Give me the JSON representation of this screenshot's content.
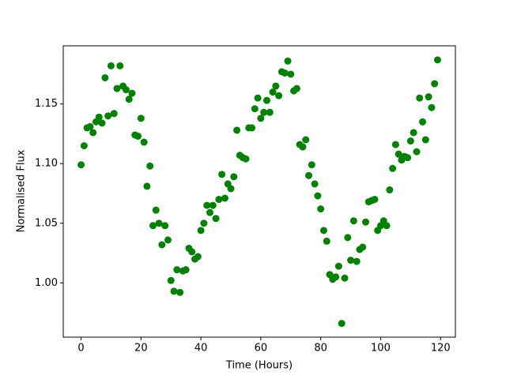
{
  "chart_data": {
    "type": "scatter",
    "x_label": "Time (Hours)",
    "y_label": "Normalised Flux",
    "color": "#008000",
    "x": [
      0,
      1,
      2,
      3,
      4,
      5,
      6,
      7,
      8,
      9,
      10,
      11,
      12,
      13,
      14,
      15,
      16,
      17,
      18,
      19,
      20,
      21,
      22,
      23,
      24,
      25,
      26,
      27,
      28,
      29,
      30,
      31,
      32,
      33,
      34,
      35,
      36,
      37,
      38,
      39,
      40,
      41,
      42,
      43,
      44,
      45,
      46,
      47,
      48,
      49,
      50,
      51,
      52,
      53,
      54,
      55,
      56,
      57,
      58,
      59,
      60,
      61,
      62,
      63,
      64,
      65,
      66,
      67,
      68,
      69,
      70,
      71,
      72,
      73,
      74,
      75,
      76,
      77,
      78,
      79,
      80,
      81,
      82,
      83,
      84,
      85,
      86,
      87,
      88,
      89,
      90,
      91,
      92,
      93,
      94,
      95,
      96,
      97,
      98,
      99,
      100,
      101,
      102,
      103,
      104,
      105,
      106,
      107,
      108,
      109,
      110,
      111,
      112,
      113,
      114,
      115,
      116,
      117,
      118,
      119
    ],
    "values": [
      1.099,
      1.115,
      1.13,
      1.131,
      1.126,
      1.135,
      1.139,
      1.134,
      1.172,
      1.14,
      1.182,
      1.142,
      1.163,
      1.182,
      1.165,
      1.162,
      1.154,
      1.159,
      1.124,
      1.123,
      1.138,
      1.118,
      1.081,
      1.098,
      1.048,
      1.061,
      1.05,
      1.032,
      1.048,
      1.036,
      1.002,
      0.993,
      1.011,
      0.992,
      1.01,
      1.011,
      1.029,
      1.026,
      1.02,
      1.022,
      1.044,
      1.05,
      1.065,
      1.059,
      1.065,
      1.054,
      1.07,
      1.091,
      1.071,
      1.083,
      1.079,
      1.089,
      1.128,
      1.107,
      1.105,
      1.104,
      1.13,
      1.13,
      1.146,
      1.155,
      1.138,
      1.143,
      1.153,
      1.143,
      1.16,
      1.165,
      1.157,
      1.177,
      1.176,
      1.186,
      1.175,
      1.161,
      1.163,
      1.116,
      1.114,
      1.12,
      1.09,
      1.099,
      1.083,
      1.073,
      1.062,
      1.044,
      1.035,
      1.007,
      1.003,
      1.005,
      1.014,
      0.966,
      1.004,
      1.038,
      1.019,
      1.052,
      1.018,
      1.028,
      1.03,
      1.051,
      1.068,
      1.069,
      1.07,
      1.044,
      1.048,
      1.052,
      1.048,
      1.078,
      1.096,
      1.116,
      1.108,
      1.103,
      1.106,
      1.105,
      1.119,
      1.126,
      1.11,
      1.155,
      1.135,
      1.12,
      1.156,
      1.147,
      1.167,
      1.187
    ],
    "xlim": [
      -5.95,
      124.95
    ],
    "ylim": [
      0.9545,
      1.1988
    ],
    "xticks": [
      0,
      20,
      40,
      60,
      80,
      100,
      120
    ],
    "yticks": [
      {
        "value": 1,
        "label": "1.00"
      },
      1.05,
      {
        "value": 1.1,
        "label": "1.10"
      },
      1.15
    ]
  }
}
